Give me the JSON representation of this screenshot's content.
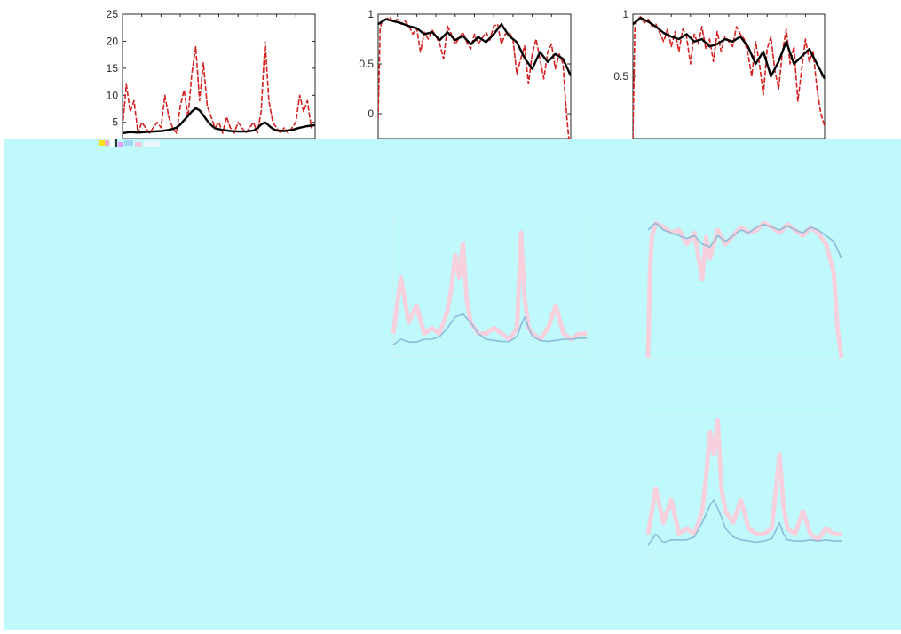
{
  "colors": {
    "overlay": "#bff9fb",
    "red_series": "#d61f1f",
    "black_series": "#000000",
    "ghost_red": "#ffc9d6",
    "ghost_blue": "#8ab8d8",
    "axis": "#262626"
  },
  "chart_data": [
    {
      "id": "top-left",
      "type": "line",
      "ylim": [
        2,
        25
      ],
      "yticks": [
        "5",
        "10",
        "15",
        "20",
        "25"
      ],
      "xlabel": "",
      "ylabel": "",
      "title": "",
      "series": [
        {
          "style": "red-dashed",
          "x": [
            0,
            2,
            4,
            6,
            8,
            10,
            12,
            14,
            16,
            18,
            20,
            22,
            24,
            26,
            28,
            30,
            32,
            34,
            36,
            38,
            40,
            42,
            44,
            46,
            48,
            50,
            52,
            54,
            56,
            58,
            60,
            62,
            64,
            66,
            68,
            70,
            72,
            74,
            76,
            78,
            80,
            82,
            84,
            86,
            88,
            90,
            92,
            94,
            96,
            98,
            100
          ],
          "y": [
            4,
            12,
            7,
            9,
            3,
            5,
            4,
            3,
            4,
            5,
            4,
            10,
            6,
            4,
            3,
            8,
            11,
            6,
            14,
            19,
            9,
            16,
            8,
            6,
            4,
            5,
            3,
            6,
            4,
            3,
            5,
            4,
            3,
            4,
            5,
            3,
            7,
            20,
            9,
            5,
            4,
            3,
            4,
            3,
            4,
            5,
            10,
            7,
            9,
            4,
            5
          ]
        },
        {
          "style": "black-smooth",
          "x": [
            0,
            4,
            8,
            12,
            16,
            20,
            24,
            28,
            30,
            32,
            34,
            36,
            38,
            40,
            42,
            44,
            46,
            48,
            52,
            56,
            60,
            64,
            68,
            70,
            72,
            74,
            76,
            78,
            80,
            84,
            88,
            92,
            96,
            100
          ],
          "y": [
            3.0,
            3.2,
            3.1,
            3.2,
            3.3,
            3.4,
            3.6,
            4.0,
            4.6,
            5.4,
            6.2,
            7.0,
            7.6,
            7.2,
            6.3,
            5.3,
            4.5,
            3.9,
            3.6,
            3.4,
            3.3,
            3.3,
            3.5,
            3.9,
            4.6,
            5.0,
            4.4,
            3.8,
            3.5,
            3.4,
            3.6,
            4.0,
            4.3,
            4.5
          ]
        }
      ]
    },
    {
      "id": "top-middle",
      "type": "line",
      "ylim": [
        -0.25,
        1.0
      ],
      "yticks": [
        "0",
        "0.5",
        "1"
      ],
      "xlabel": "",
      "ylabel": "",
      "title": "",
      "series": [
        {
          "style": "red-dashed",
          "x": [
            0,
            1,
            2,
            4,
            6,
            8,
            10,
            12,
            14,
            16,
            18,
            20,
            22,
            24,
            26,
            28,
            30,
            32,
            34,
            36,
            38,
            40,
            42,
            44,
            46,
            48,
            50,
            52,
            54,
            56,
            58,
            60,
            62,
            64,
            66,
            68,
            70,
            72,
            74,
            76,
            78,
            80,
            82,
            84,
            86,
            88,
            90,
            92,
            94,
            96,
            97,
            98,
            99,
            100
          ],
          "y": [
            -0.05,
            0.85,
            0.93,
            0.95,
            0.97,
            0.92,
            0.95,
            0.9,
            0.93,
            0.88,
            0.8,
            0.86,
            0.62,
            0.82,
            0.75,
            0.84,
            0.78,
            0.7,
            0.55,
            0.88,
            0.8,
            0.7,
            0.76,
            0.82,
            0.72,
            0.65,
            0.8,
            0.7,
            0.76,
            0.82,
            0.74,
            0.88,
            0.9,
            0.7,
            0.8,
            0.82,
            0.75,
            0.4,
            0.55,
            0.68,
            0.3,
            0.6,
            0.75,
            0.55,
            0.35,
            0.62,
            0.7,
            0.45,
            0.6,
            0.5,
            0.2,
            -0.05,
            -0.25,
            -0.25
          ]
        },
        {
          "style": "black-smooth",
          "x": [
            0,
            4,
            8,
            12,
            16,
            20,
            24,
            28,
            32,
            36,
            40,
            44,
            48,
            52,
            56,
            60,
            64,
            68,
            72,
            76,
            80,
            84,
            88,
            92,
            96,
            100
          ],
          "y": [
            0.9,
            0.95,
            0.93,
            0.91,
            0.88,
            0.86,
            0.8,
            0.82,
            0.74,
            0.82,
            0.74,
            0.78,
            0.7,
            0.77,
            0.72,
            0.8,
            0.9,
            0.78,
            0.72,
            0.56,
            0.45,
            0.62,
            0.52,
            0.6,
            0.55,
            0.38
          ]
        }
      ]
    },
    {
      "id": "top-right",
      "type": "line",
      "ylim": [
        0.0,
        1.0
      ],
      "yticks": [
        "0.5",
        "1"
      ],
      "xlabel": "",
      "ylabel": "",
      "title": "",
      "series": [
        {
          "style": "red-dashed",
          "x": [
            0,
            1,
            2,
            4,
            6,
            8,
            10,
            12,
            14,
            16,
            18,
            20,
            22,
            24,
            26,
            28,
            30,
            32,
            34,
            36,
            38,
            40,
            42,
            44,
            46,
            48,
            50,
            52,
            54,
            56,
            58,
            60,
            62,
            64,
            66,
            68,
            70,
            72,
            74,
            76,
            78,
            80,
            82,
            84,
            86,
            88,
            90,
            92,
            94,
            96,
            98,
            100
          ],
          "y": [
            0.0,
            0.88,
            0.95,
            0.98,
            0.93,
            0.96,
            0.9,
            0.92,
            0.85,
            0.78,
            0.88,
            0.74,
            0.86,
            0.7,
            0.88,
            0.82,
            0.6,
            0.84,
            0.76,
            0.9,
            0.72,
            0.8,
            0.62,
            0.86,
            0.7,
            0.82,
            0.78,
            0.74,
            0.9,
            0.84,
            0.8,
            0.68,
            0.5,
            0.78,
            0.6,
            0.35,
            0.72,
            0.82,
            0.55,
            0.4,
            0.7,
            0.88,
            0.6,
            0.74,
            0.3,
            0.55,
            0.8,
            0.62,
            0.7,
            0.4,
            0.2,
            0.1
          ]
        },
        {
          "style": "black-smooth",
          "x": [
            0,
            4,
            8,
            12,
            16,
            20,
            24,
            28,
            32,
            36,
            40,
            44,
            48,
            52,
            56,
            60,
            64,
            68,
            72,
            76,
            80,
            84,
            88,
            92,
            96,
            100
          ],
          "y": [
            0.92,
            0.97,
            0.94,
            0.9,
            0.85,
            0.82,
            0.8,
            0.84,
            0.78,
            0.8,
            0.74,
            0.76,
            0.8,
            0.78,
            0.82,
            0.74,
            0.6,
            0.7,
            0.5,
            0.62,
            0.78,
            0.6,
            0.66,
            0.72,
            0.6,
            0.48
          ]
        }
      ]
    },
    {
      "id": "middle-middle-ghost",
      "type": "line",
      "ylim": [
        0,
        25
      ],
      "yticks": [],
      "xlabel": "",
      "ylabel": "",
      "title": "",
      "series": [
        {
          "style": "ghost-red",
          "x": [
            0,
            4,
            8,
            12,
            16,
            20,
            24,
            28,
            30,
            32,
            34,
            36,
            38,
            40,
            42,
            44,
            48,
            52,
            56,
            60,
            64,
            66,
            68,
            70,
            72,
            76,
            80,
            84,
            88,
            92,
            96,
            100
          ],
          "y": [
            4,
            14,
            6,
            9,
            4,
            5,
            4,
            8,
            12,
            18,
            14,
            20,
            10,
            6,
            5,
            4,
            4,
            5,
            4,
            3,
            5,
            22,
            10,
            5,
            4,
            3,
            5,
            9,
            4,
            3,
            4,
            4
          ]
        },
        {
          "style": "ghost-blue",
          "x": [
            0,
            4,
            8,
            12,
            16,
            20,
            24,
            28,
            32,
            36,
            40,
            44,
            48,
            52,
            56,
            60,
            64,
            66,
            68,
            70,
            72,
            76,
            80,
            84,
            88,
            92,
            96,
            100
          ],
          "y": [
            2,
            3,
            2.5,
            2.5,
            3,
            3,
            3.5,
            5,
            7,
            7.5,
            6,
            4,
            3,
            2.8,
            2.6,
            2.6,
            3.5,
            5.5,
            7,
            5,
            3.5,
            2.8,
            2.6,
            2.8,
            3,
            3,
            3.2,
            3.2
          ]
        }
      ]
    },
    {
      "id": "middle-right-ghost",
      "type": "line",
      "ylim": [
        0,
        1
      ],
      "yticks": [],
      "xlabel": "",
      "ylabel": "",
      "title": "",
      "series": [
        {
          "style": "ghost-red",
          "x": [
            0,
            1,
            2,
            4,
            8,
            12,
            16,
            20,
            24,
            28,
            30,
            32,
            36,
            40,
            44,
            48,
            52,
            56,
            60,
            64,
            68,
            72,
            76,
            80,
            84,
            88,
            92,
            96,
            98,
            100
          ],
          "y": [
            0.0,
            0.6,
            0.85,
            0.95,
            0.92,
            0.88,
            0.9,
            0.8,
            0.88,
            0.55,
            0.85,
            0.7,
            0.9,
            0.8,
            0.86,
            0.92,
            0.88,
            0.9,
            0.95,
            0.92,
            0.88,
            0.94,
            0.9,
            0.86,
            0.92,
            0.88,
            0.8,
            0.6,
            0.2,
            0.0
          ]
        },
        {
          "style": "ghost-blue",
          "x": [
            0,
            4,
            8,
            12,
            16,
            20,
            24,
            28,
            32,
            36,
            40,
            44,
            48,
            52,
            56,
            60,
            64,
            68,
            72,
            76,
            80,
            84,
            88,
            92,
            96,
            100
          ],
          "y": [
            0.9,
            0.95,
            0.9,
            0.88,
            0.86,
            0.84,
            0.86,
            0.8,
            0.78,
            0.86,
            0.82,
            0.86,
            0.9,
            0.88,
            0.92,
            0.94,
            0.92,
            0.9,
            0.93,
            0.9,
            0.88,
            0.92,
            0.9,
            0.86,
            0.82,
            0.7
          ]
        }
      ]
    },
    {
      "id": "bottom-right-ghost",
      "type": "line",
      "ylim": [
        0,
        25
      ],
      "yticks": [],
      "xlabel": "",
      "ylabel": "",
      "title": "",
      "series": [
        {
          "style": "ghost-red",
          "x": [
            0,
            4,
            8,
            12,
            16,
            20,
            24,
            28,
            30,
            32,
            34,
            36,
            38,
            40,
            44,
            48,
            52,
            56,
            60,
            64,
            68,
            70,
            72,
            76,
            80,
            84,
            88,
            92,
            96,
            100
          ],
          "y": [
            4,
            12,
            6,
            10,
            4,
            5,
            4,
            8,
            14,
            22,
            18,
            24,
            12,
            8,
            6,
            10,
            5,
            4,
            4,
            5,
            18,
            9,
            5,
            4,
            8,
            4,
            3,
            5,
            4,
            4
          ]
        },
        {
          "style": "ghost-blue",
          "x": [
            0,
            4,
            8,
            12,
            16,
            20,
            24,
            28,
            32,
            34,
            36,
            38,
            40,
            44,
            48,
            52,
            56,
            60,
            64,
            68,
            70,
            72,
            76,
            80,
            84,
            88,
            92,
            96,
            100
          ],
          "y": [
            2,
            4,
            2.5,
            3,
            3,
            3,
            3.5,
            6,
            9,
            10,
            8.5,
            7,
            5,
            3.5,
            3,
            2.8,
            2.6,
            2.8,
            3.2,
            6,
            4,
            3,
            2.8,
            2.8,
            3,
            2.8,
            3,
            2.8,
            2.8
          ]
        }
      ]
    }
  ]
}
